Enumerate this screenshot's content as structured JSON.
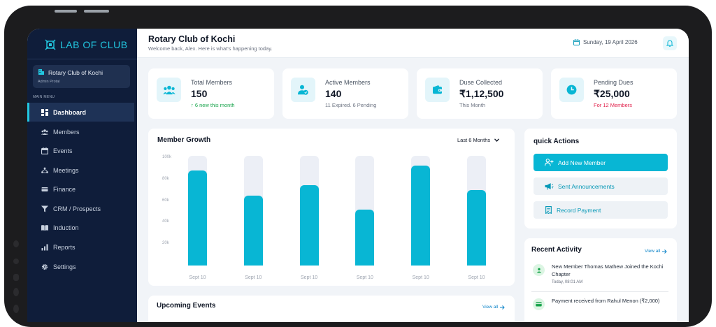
{
  "app": {
    "logo_text": "LAB OF CLUB"
  },
  "sidebar": {
    "club_name": "Rotary Club of Kochi",
    "club_role": "Admin Protal",
    "menu_label": "MAIN MENU",
    "items": [
      {
        "label": "Dashboard",
        "icon": "dashboard-icon",
        "active": true
      },
      {
        "label": "Members",
        "icon": "members-icon"
      },
      {
        "label": "Events",
        "icon": "events-icon"
      },
      {
        "label": "Meetings",
        "icon": "meetings-icon"
      },
      {
        "label": "Finance",
        "icon": "finance-icon"
      },
      {
        "label": "CRM / Prospects",
        "icon": "funnel-icon"
      },
      {
        "label": "Induction",
        "icon": "book-icon"
      },
      {
        "label": "Reports",
        "icon": "reports-icon"
      },
      {
        "label": "Settings",
        "icon": "gear-icon"
      }
    ]
  },
  "header": {
    "title": "Rotary Club of Kochi",
    "subtitle": "Welcome back, Alex. Here is what's happening today.",
    "date": "Sunday, 19 April 2026"
  },
  "stats": [
    {
      "label": "Total Members",
      "value": "150",
      "note": "↑ 6 new this month",
      "icon": "members-icon"
    },
    {
      "label": "Active Members",
      "value": "140",
      "note": "11 Expired. 6 Pending",
      "icon": "active-member-icon"
    },
    {
      "label": "Duse Collected",
      "value": "₹1,12,500",
      "note": "This Month",
      "icon": "wallet-icon"
    },
    {
      "label": "Pending Dues",
      "value": "₹25,000",
      "note": "For 12 Members",
      "icon": "clock-icon"
    }
  ],
  "growth": {
    "title": "Member Growth",
    "range": "Last 6 Months"
  },
  "chart_data": {
    "type": "bar",
    "title": "Member Growth",
    "categories": [
      "Sept 10",
      "Sept 10",
      "Sept 10",
      "Sept 10",
      "Sept 10",
      "Sept 10"
    ],
    "values": [
      88000,
      65000,
      75000,
      52000,
      93000,
      70000
    ],
    "yticks": [
      "100k",
      "80k",
      "60k",
      "40k",
      "20k"
    ],
    "ylim": [
      0,
      100000
    ],
    "colors": {
      "bar": "#08b6d4",
      "track": "#eceff6"
    }
  },
  "quick_actions": {
    "title": "quick Actions",
    "buttons": [
      {
        "label": "Add New Member",
        "icon": "add-user-icon"
      },
      {
        "label": "Sent Announcements",
        "icon": "megaphone-icon"
      },
      {
        "label": "Record Payment",
        "icon": "receipt-icon"
      }
    ]
  },
  "recent_activity": {
    "title": "Recent Activity",
    "view_all": "View all",
    "items": [
      {
        "text": "New Member Thomas Mathew Joined the Kochi Chapter",
        "time": "Today, 08:01 AM"
      },
      {
        "text": "Payment received from Rahul Menon (₹2,000)",
        "time": ""
      }
    ]
  },
  "upcoming_events": {
    "title": "Upcoming Events",
    "view_all": "View all"
  },
  "colors": {
    "accent": "#08b6d4",
    "sidebar": "#0f1d3a",
    "success": "#16a34a",
    "danger": "#e11d48"
  }
}
